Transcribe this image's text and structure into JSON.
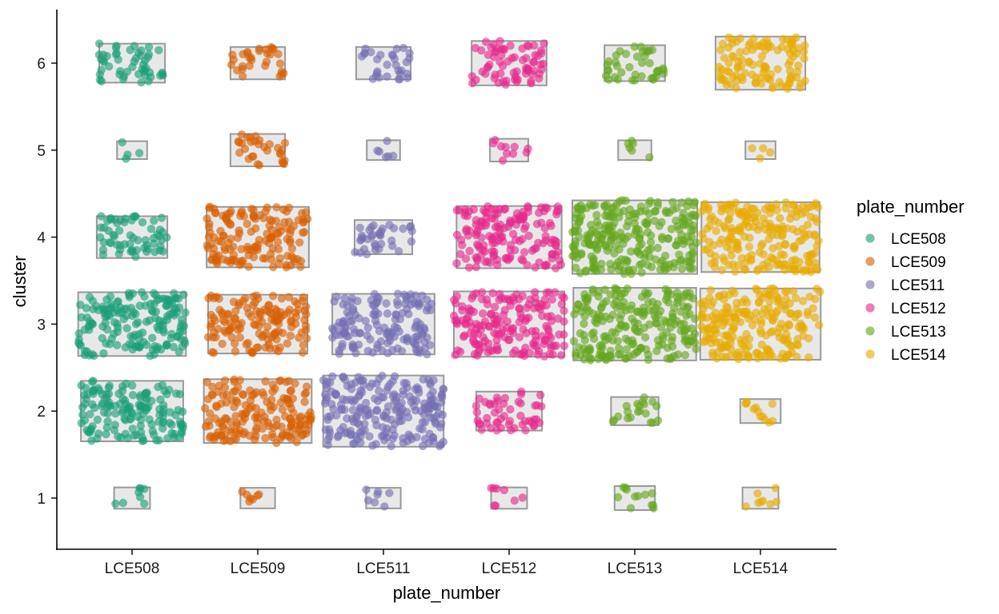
{
  "chart_data": {
    "type": "scatter",
    "subtype": "jittered points with rectangle per category/cluster group",
    "xlabel": "plate_number",
    "ylabel": "cluster",
    "categories": [
      "LCE508",
      "LCE509",
      "LCE511",
      "LCE512",
      "LCE513",
      "LCE514"
    ],
    "y_ticks": [
      "1",
      "2",
      "3",
      "4",
      "5",
      "6"
    ],
    "ylim": [
      0.35,
      6.6
    ],
    "grid": false,
    "legend": {
      "title": "plate_number",
      "placement": "right",
      "entries": [
        "LCE508",
        "LCE509",
        "LCE511",
        "LCE512",
        "LCE513",
        "LCE514"
      ]
    },
    "series": [
      {
        "name": "LCE508",
        "color": "#1B9E77",
        "counts_by_cluster": {
          "1": 8,
          "2": 150,
          "3": 170,
          "4": 60,
          "5": 4,
          "6": 50
        }
      },
      {
        "name": "LCE509",
        "color": "#D95F02",
        "counts_by_cluster": {
          "1": 7,
          "2": 170,
          "3": 140,
          "4": 150,
          "5": 30,
          "6": 30
        }
      },
      {
        "name": "LCE511",
        "color": "#7570B3",
        "counts_by_cluster": {
          "1": 7,
          "2": 220,
          "3": 150,
          "4": 35,
          "5": 6,
          "6": 30
        }
      },
      {
        "name": "LCE512",
        "color": "#E7298A",
        "counts_by_cluster": {
          "1": 8,
          "2": 50,
          "3": 180,
          "4": 160,
          "5": 10,
          "6": 70
        }
      },
      {
        "name": "LCE513",
        "color": "#66A61E",
        "counts_by_cluster": {
          "1": 12,
          "2": 20,
          "3": 230,
          "4": 260,
          "5": 6,
          "6": 40
        }
      },
      {
        "name": "LCE514",
        "color": "#E6AB02",
        "counts_by_cluster": {
          "1": 8,
          "2": 12,
          "3": 220,
          "4": 210,
          "5": 4,
          "6": 110
        }
      }
    ]
  }
}
